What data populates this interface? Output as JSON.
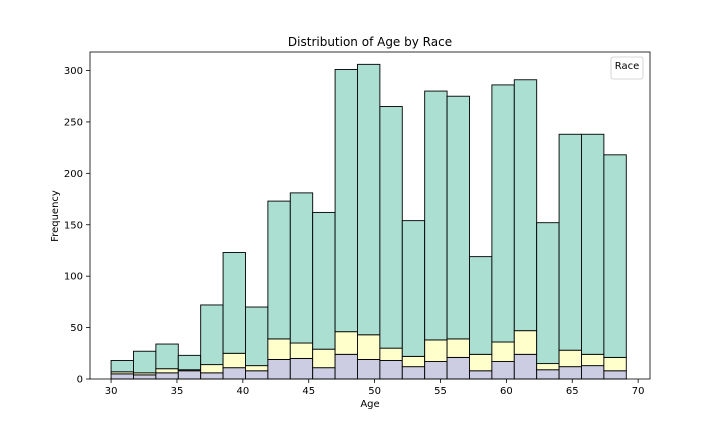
{
  "chart_data": {
    "type": "bar",
    "title": "Distribution of Age by Race",
    "xlabel": "Age",
    "ylabel": "Frequency",
    "legend_title": "Race",
    "legend_position": "top-right",
    "xlim": [
      28.4,
      70.9
    ],
    "ylim": [
      0,
      318
    ],
    "x_ticks": [
      30,
      35,
      40,
      45,
      50,
      55,
      60,
      65,
      70
    ],
    "y_ticks": [
      0,
      50,
      100,
      150,
      200,
      250,
      300
    ],
    "bin_start": 30,
    "bin_width": 1.7,
    "stacked": true,
    "series": [
      {
        "color": "#cccce3",
        "values": [
          5,
          4,
          6,
          8,
          6,
          11,
          8,
          19,
          20,
          11,
          24,
          19,
          18,
          12,
          17,
          21,
          8,
          17,
          24,
          9,
          12,
          13,
          8
        ]
      },
      {
        "color": "#ffffcc",
        "values": [
          2,
          2,
          4,
          1,
          8,
          14,
          5,
          20,
          15,
          18,
          22,
          24,
          12,
          10,
          21,
          18,
          16,
          19,
          23,
          6,
          16,
          11,
          13
        ]
      },
      {
        "color": "#aadfd2",
        "values": [
          11,
          21,
          24,
          14,
          58,
          98,
          57,
          134,
          146,
          133,
          255,
          263,
          235,
          132,
          242,
          236,
          95,
          250,
          244,
          137,
          210,
          214,
          197
        ]
      }
    ]
  }
}
